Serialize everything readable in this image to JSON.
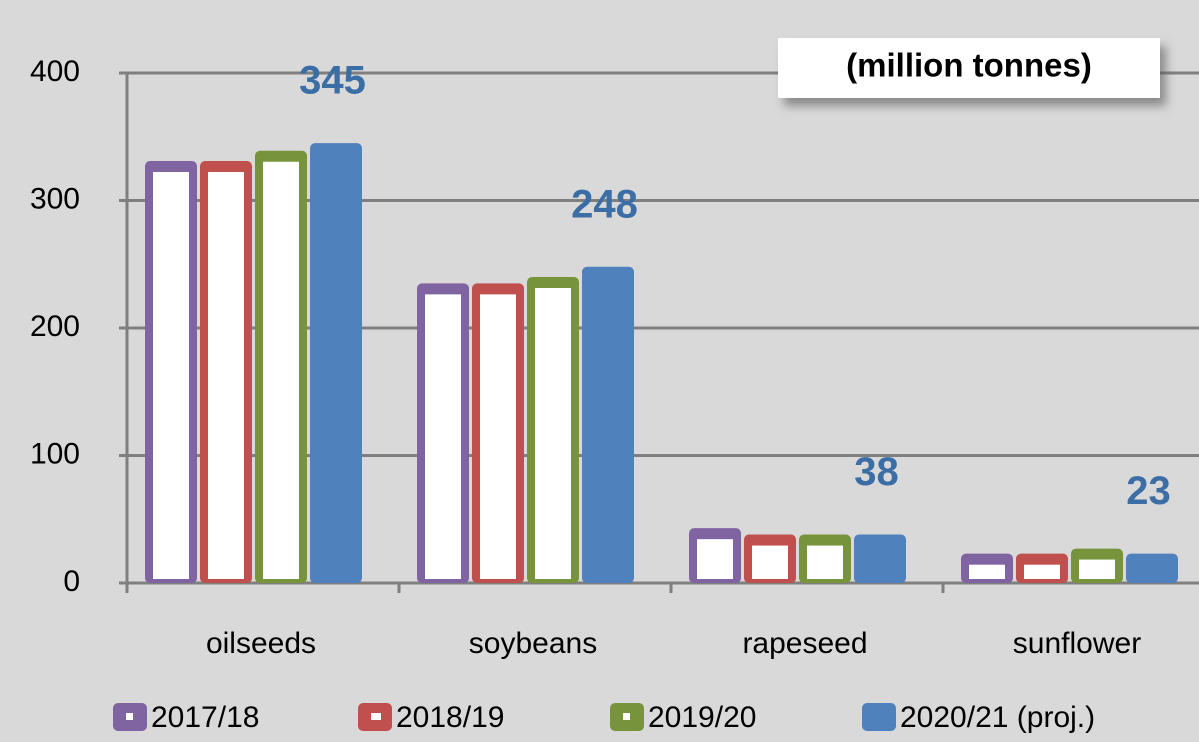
{
  "chart_data": {
    "type": "bar",
    "annotation": "(million tonnes)",
    "categories": [
      "oilseeds",
      "soybeans",
      "rapeseed",
      "sunflower"
    ],
    "series": [
      {
        "name": "2017/18",
        "color": "#8064a2",
        "values": [
          331,
          235,
          43,
          23
        ]
      },
      {
        "name": "2018/19",
        "color": "#c0504d",
        "values": [
          331,
          235,
          38,
          23
        ]
      },
      {
        "name": "2019/20",
        "color": "#77933c",
        "values": [
          339,
          240,
          38,
          27
        ]
      },
      {
        "name": "2020/21 (proj.)",
        "color": "#4f81bd",
        "values": [
          345,
          248,
          38,
          23
        ]
      }
    ],
    "ylim": [
      0,
      400
    ],
    "yticks": [
      0,
      100,
      200,
      300,
      400
    ],
    "grid": true
  }
}
